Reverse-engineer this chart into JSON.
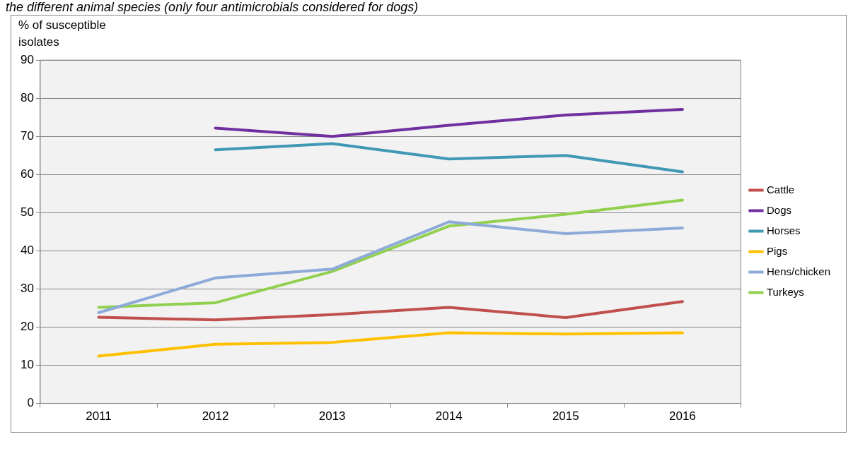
{
  "chart_data": {
    "type": "line",
    "title": "the different animal species (only four antimicrobials considered for dogs)",
    "ylabel": "% of susceptible isolates",
    "categories": [
      "2011",
      "2012",
      "2013",
      "2014",
      "2015",
      "2016"
    ],
    "series": [
      {
        "name": "Cattle",
        "color": "#c0504d",
        "values": [
          22.6,
          21.9,
          23.3,
          25.2,
          22.5,
          26.7
        ]
      },
      {
        "name": "Dogs",
        "color": "#7030a0",
        "values": [
          null,
          72.2,
          70,
          72.9,
          75.6,
          77.1
        ]
      },
      {
        "name": "Horses",
        "color": "#4198b4",
        "values": [
          null,
          66.5,
          68.1,
          64.1,
          65.0,
          60.7
        ]
      },
      {
        "name": "Pigs",
        "color": "#ffc000",
        "values": [
          12.4,
          15.5,
          16.0,
          18.5,
          18.2,
          18.5
        ]
      },
      {
        "name": "Hens/chicken",
        "color": "#8eaad8",
        "values": [
          23.8,
          32.9,
          35.2,
          47.6,
          44.5,
          46.0
        ]
      },
      {
        "name": "Turkeys",
        "color": "#92d050",
        "values": [
          25.2,
          26.4,
          34.6,
          46.5,
          49.6,
          53.3
        ]
      }
    ],
    "ylim": [
      0,
      90
    ],
    "yticks": [
      0,
      10,
      20,
      30,
      40,
      50,
      60,
      70,
      80,
      90
    ],
    "grid": "y",
    "legend": "right",
    "marker": "none",
    "line_style": "solid"
  }
}
